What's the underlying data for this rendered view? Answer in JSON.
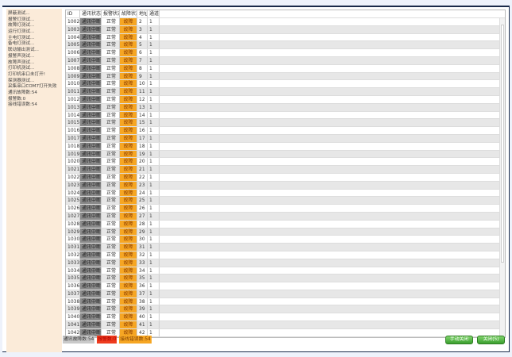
{
  "sidebar": {
    "items": [
      "屏蔽测试...",
      "报警灯测试...",
      "故障灯测试...",
      "运行灯测试...",
      "主电灯测试...",
      "备电灯测试...",
      "联动输出测试...",
      "报警声测试...",
      "故障声测试...",
      "打印机测试...",
      "打印机串口未打开!",
      "探测器测试...",
      "采集串口COM7打开失败",
      "通讯故障数:54",
      "报警数:0",
      "接线错误数:54"
    ]
  },
  "table": {
    "headers": [
      "ID",
      "通讯状态",
      "报警状态",
      "故障状态",
      "地址",
      "通道"
    ],
    "rows": [
      [
        1002,
        "通讯中断",
        "正常",
        "故障",
        2,
        1
      ],
      [
        1003,
        "通讯中断",
        "正常",
        "故障",
        3,
        1
      ],
      [
        1004,
        "通讯中断",
        "正常",
        "故障",
        4,
        1
      ],
      [
        1005,
        "通讯中断",
        "正常",
        "故障",
        5,
        1
      ],
      [
        1006,
        "通讯中断",
        "正常",
        "故障",
        6,
        1
      ],
      [
        1007,
        "通讯中断",
        "正常",
        "故障",
        7,
        1
      ],
      [
        1008,
        "通讯中断",
        "正常",
        "故障",
        8,
        1
      ],
      [
        1009,
        "通讯中断",
        "正常",
        "故障",
        9,
        1
      ],
      [
        1010,
        "通讯中断",
        "正常",
        "故障",
        10,
        1
      ],
      [
        1011,
        "通讯中断",
        "正常",
        "故障",
        11,
        1
      ],
      [
        1012,
        "通讯中断",
        "正常",
        "故障",
        12,
        1
      ],
      [
        1013,
        "通讯中断",
        "正常",
        "故障",
        13,
        1
      ],
      [
        1014,
        "通讯中断",
        "正常",
        "故障",
        14,
        1
      ],
      [
        1015,
        "通讯中断",
        "正常",
        "故障",
        15,
        1
      ],
      [
        1016,
        "通讯中断",
        "正常",
        "故障",
        16,
        1
      ],
      [
        1017,
        "通讯中断",
        "正常",
        "故障",
        17,
        1
      ],
      [
        1018,
        "通讯中断",
        "正常",
        "故障",
        18,
        1
      ],
      [
        1019,
        "通讯中断",
        "正常",
        "故障",
        19,
        1
      ],
      [
        1020,
        "通讯中断",
        "正常",
        "故障",
        20,
        1
      ],
      [
        1021,
        "通讯中断",
        "正常",
        "故障",
        21,
        1
      ],
      [
        1022,
        "通讯中断",
        "正常",
        "故障",
        22,
        1
      ],
      [
        1023,
        "通讯中断",
        "正常",
        "故障",
        23,
        1
      ],
      [
        1024,
        "通讯中断",
        "正常",
        "故障",
        24,
        1
      ],
      [
        1025,
        "通讯中断",
        "正常",
        "故障",
        25,
        1
      ],
      [
        1026,
        "通讯中断",
        "正常",
        "故障",
        26,
        1
      ],
      [
        1027,
        "通讯中断",
        "正常",
        "故障",
        27,
        1
      ],
      [
        1028,
        "通讯中断",
        "正常",
        "故障",
        28,
        1
      ],
      [
        1029,
        "通讯中断",
        "正常",
        "故障",
        29,
        1
      ],
      [
        1030,
        "通讯中断",
        "正常",
        "故障",
        30,
        1
      ],
      [
        1031,
        "通讯中断",
        "正常",
        "故障",
        31,
        1
      ],
      [
        1032,
        "通讯中断",
        "正常",
        "故障",
        32,
        1
      ],
      [
        1033,
        "通讯中断",
        "正常",
        "故障",
        33,
        1
      ],
      [
        1034,
        "通讯中断",
        "正常",
        "故障",
        34,
        1
      ],
      [
        1035,
        "通讯中断",
        "正常",
        "故障",
        35,
        1
      ],
      [
        1036,
        "通讯中断",
        "正常",
        "故障",
        36,
        1
      ],
      [
        1037,
        "通讯中断",
        "正常",
        "故障",
        37,
        1
      ],
      [
        1038,
        "通讯中断",
        "正常",
        "故障",
        38,
        1
      ],
      [
        1039,
        "通讯中断",
        "正常",
        "故障",
        39,
        1
      ],
      [
        1040,
        "通讯中断",
        "正常",
        "故障",
        40,
        1
      ],
      [
        1041,
        "通讯中断",
        "正常",
        "故障",
        41,
        1
      ],
      [
        1042,
        "通讯中断",
        "正常",
        "故障",
        42,
        1
      ]
    ]
  },
  "status": {
    "comm_faults": "通讯故障数:54",
    "alarms": "报警数:0",
    "wiring_errors": "接线错误数:54"
  },
  "buttons": {
    "manual_close": "手动关闭",
    "close": "关闭(5)"
  },
  "colors": {
    "comm_fault": "#8a8a8a",
    "fault": "#f6a623",
    "alarm": "#ee3b1e",
    "button": "#3a9e2e",
    "sidebar": "#fbebd9"
  }
}
